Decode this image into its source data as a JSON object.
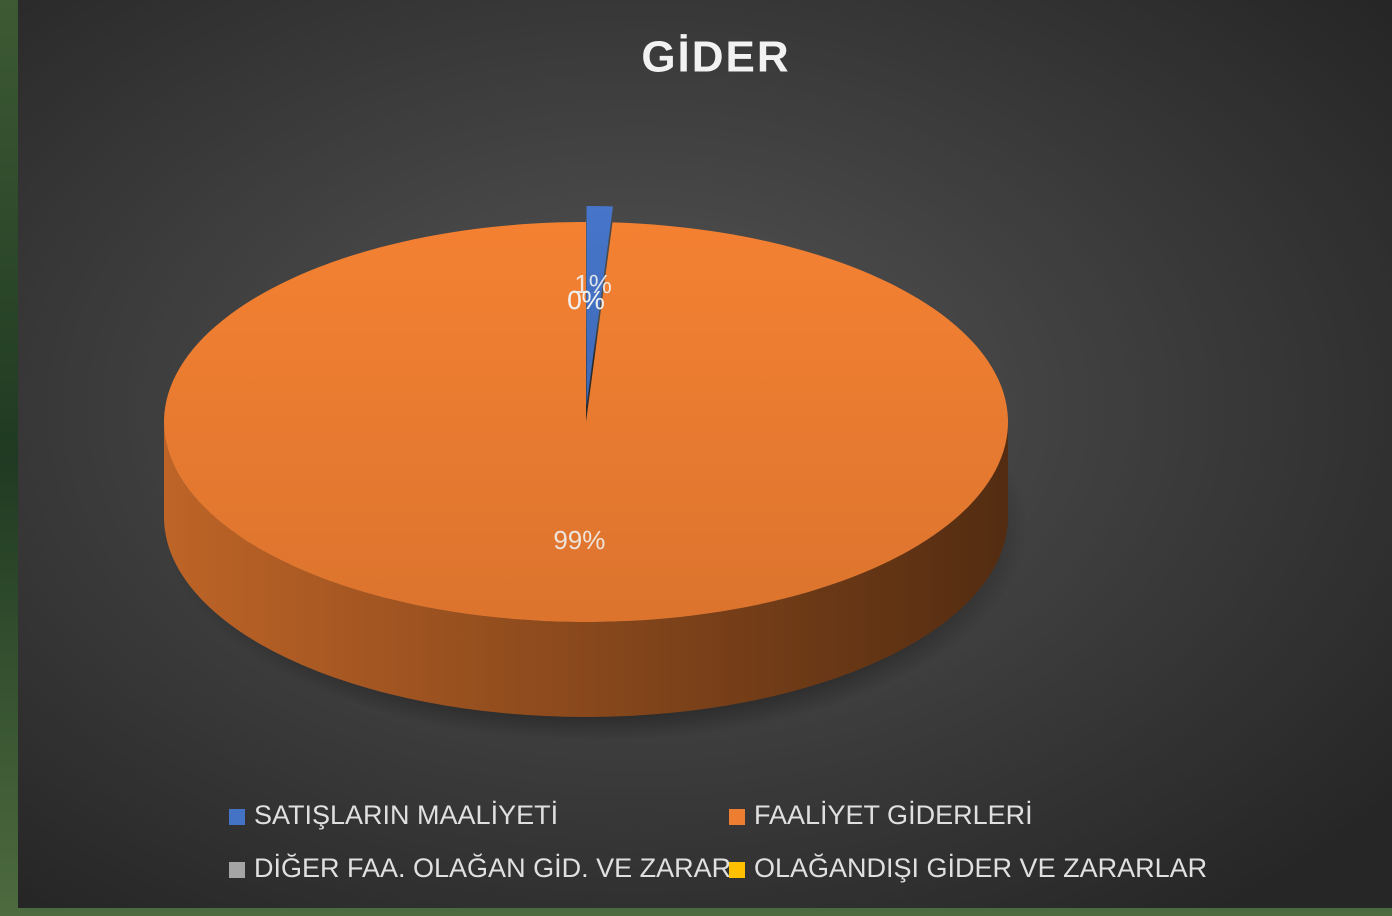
{
  "chart_data": {
    "type": "pie",
    "title": "GİDER",
    "categories": [
      "SATIŞLARIN MAALİYETİ",
      "FAALİYET GİDERLERİ",
      "DİĞER FAA. OLAĞAN GİD. VE ZARAR",
      "OLAĞANDIŞI GİDER VE ZARARLAR"
    ],
    "values": [
      1,
      99,
      0,
      0
    ],
    "value_labels": [
      "1%",
      "99%",
      "0%",
      "0%"
    ],
    "colors": [
      "#4472c4",
      "#ed7d31",
      "#a5a5a5",
      "#ffc000"
    ]
  }
}
